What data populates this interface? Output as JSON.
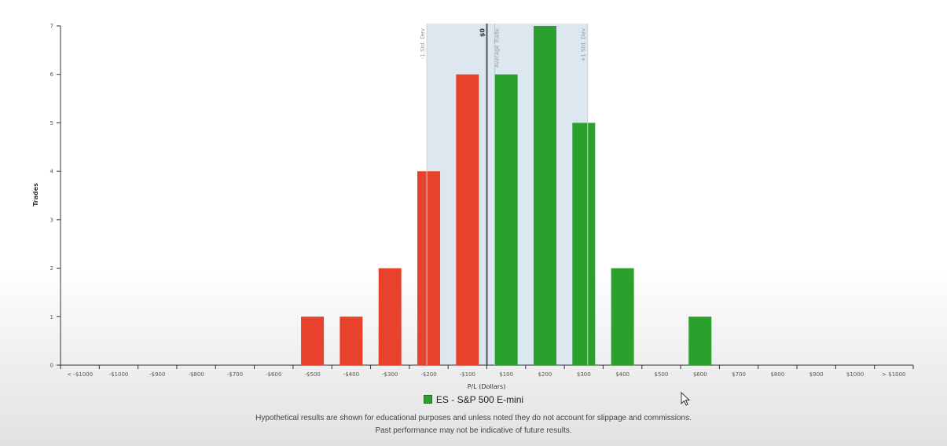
{
  "chart_data": {
    "type": "bar",
    "xlabel": "P/L (Dollars)",
    "ylabel": "Trades",
    "ylim": [
      0,
      7
    ],
    "yticks": [
      0,
      1,
      2,
      3,
      4,
      5,
      6,
      7
    ],
    "categories": [
      "< -$1000",
      "-$1000",
      "-$900",
      "-$800",
      "-$700",
      "-$600",
      "-$500",
      "-$400",
      "-$300",
      "-$200",
      "-$100",
      "$100",
      "$200",
      "$300",
      "$400",
      "$500",
      "$600",
      "$700",
      "$800",
      "$900",
      "$1000",
      "> $1000"
    ],
    "values": [
      0,
      0,
      0,
      0,
      0,
      0,
      1,
      1,
      2,
      4,
      6,
      6,
      7,
      5,
      2,
      0,
      1,
      0,
      0,
      0,
      0,
      0
    ],
    "colors": {
      "loss": "#e8412c",
      "profit": "#2ca02c",
      "band": "#dde7f0"
    },
    "reference_lines": {
      "zero_label": "$0",
      "minus_std_label": "-1 Std. Dev",
      "average_label": "Average Trade",
      "plus_std_label": "+1 Std. Dev",
      "minus_std_value": -155,
      "zero_value": 0,
      "average_value": 20,
      "plus_std_value": 260
    },
    "legend": {
      "series_name": "ES - S&P 500 E-mini",
      "color": "#2ca02c"
    }
  },
  "footer": {
    "line1": "Hypothetical results are shown for educational purposes and unless noted they do not account for slippage and commissions.",
    "line2": "Past performance may not be indicative of future results."
  }
}
